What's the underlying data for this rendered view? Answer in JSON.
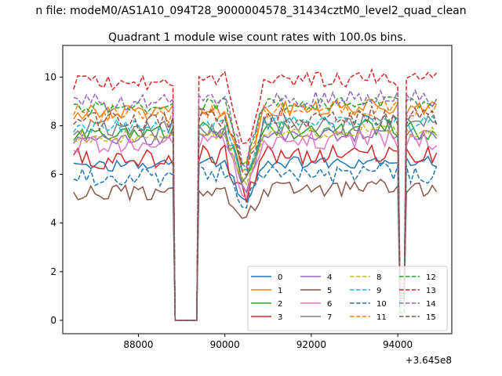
{
  "figure": {
    "suptitle": "n file: modeM0/AS1A10_094T28_9000004578_31434cztM0_level2_quad_clean",
    "title": "Quadrant 1 module wise count rates with 100.0s bins."
  },
  "chart_data": {
    "type": "line",
    "title": "Quadrant 1 module wise count rates with 100.0s bins.",
    "xlabel": "",
    "ylabel": "",
    "x_offset_label": "+3.645e8",
    "x_offset": 364500000,
    "xlim": [
      86250,
      95250
    ],
    "ylim": [
      -0.55,
      11.3
    ],
    "xticks": [
      88000,
      90000,
      92000,
      94000
    ],
    "xtick_labels": [
      "88000",
      "90000",
      "92000",
      "94000"
    ],
    "yticks": [
      0,
      2,
      4,
      6,
      8,
      10
    ],
    "ytick_labels": [
      "0",
      "2",
      "4",
      "6",
      "8",
      "10"
    ],
    "grid": false,
    "legend_position": "lower-right",
    "legend_ncol": 4,
    "time_segments": [
      {
        "start": 86500,
        "end": 88800,
        "step": 100
      },
      {
        "start": 88850,
        "end": 89350,
        "step": 100,
        "zero": true
      },
      {
        "start": 89400,
        "end": 94000,
        "step": 100
      },
      {
        "start": 94050,
        "end": 94150,
        "step": 100,
        "dip": true
      },
      {
        "start": 94200,
        "end": 94900,
        "step": 100
      }
    ],
    "series": [
      {
        "name": "0",
        "color": "#1f77b4",
        "dash": "solid",
        "base": 6.5,
        "dip": 4.8,
        "end_dip": 1.0
      },
      {
        "name": "1",
        "color": "#ff7f0e",
        "dash": "solid",
        "base": 8.7,
        "dip": 5.9,
        "end_dip": 1.5
      },
      {
        "name": "2",
        "color": "#2ca02c",
        "dash": "solid",
        "base": 7.8,
        "dip": 5.6,
        "end_dip": 1.1
      },
      {
        "name": "3",
        "color": "#d62728",
        "dash": "solid",
        "base": 6.8,
        "dip": 5.0,
        "end_dip": 1.2
      },
      {
        "name": "4",
        "color": "#9467bd",
        "dash": "solid",
        "base": 7.6,
        "dip": 5.2,
        "end_dip": 1.3
      },
      {
        "name": "5",
        "color": "#8c564b",
        "dash": "solid",
        "base": 5.4,
        "dip": 4.0,
        "end_dip": 0.9
      },
      {
        "name": "6",
        "color": "#e377c2",
        "dash": "solid",
        "base": 7.4,
        "dip": 5.1,
        "end_dip": 1.4
      },
      {
        "name": "7",
        "color": "#7f7f7f",
        "dash": "solid",
        "base": 8.0,
        "dip": 5.5,
        "end_dip": 1.0
      },
      {
        "name": "8",
        "color": "#bcbd22",
        "dash": "dashed",
        "base": 7.7,
        "dip": 5.6,
        "end_dip": 1.2
      },
      {
        "name": "9",
        "color": "#17becf",
        "dash": "dashed",
        "base": 8.1,
        "dip": 5.7,
        "end_dip": 0.6
      },
      {
        "name": "10",
        "color": "#1f77b4",
        "dash": "dashed",
        "base": 6.0,
        "dip": 4.6,
        "end_dip": 0.8
      },
      {
        "name": "11",
        "color": "#ff7f0e",
        "dash": "dashed",
        "base": 8.6,
        "dip": 6.0,
        "end_dip": 1.5
      },
      {
        "name": "12",
        "color": "#2ca02c",
        "dash": "dashed",
        "base": 8.9,
        "dip": 6.2,
        "end_dip": 0.3
      },
      {
        "name": "13",
        "color": "#d62728",
        "dash": "dashed",
        "base": 9.9,
        "dip": 6.7,
        "end_dip": 1.1
      },
      {
        "name": "14",
        "color": "#9467bd",
        "dash": "dashed",
        "base": 9.1,
        "dip": 6.3,
        "end_dip": 1.3
      },
      {
        "name": "15",
        "color": "#8c564b",
        "dash": "dashed",
        "base": 8.3,
        "dip": 6.0,
        "end_dip": 1.7
      }
    ]
  }
}
